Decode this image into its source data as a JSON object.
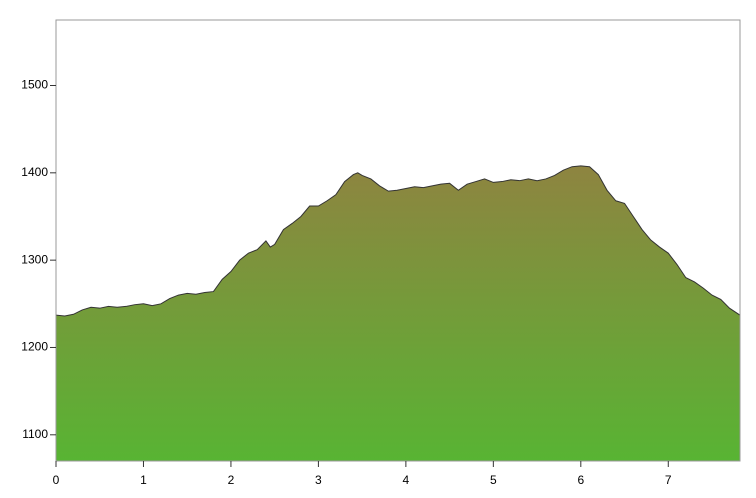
{
  "chart_data": {
    "type": "area",
    "x": [
      0,
      0.1,
      0.2,
      0.3,
      0.4,
      0.5,
      0.6,
      0.7,
      0.8,
      0.9,
      1.0,
      1.1,
      1.2,
      1.3,
      1.4,
      1.5,
      1.6,
      1.7,
      1.8,
      1.9,
      2.0,
      2.1,
      2.2,
      2.3,
      2.4,
      2.45,
      2.5,
      2.6,
      2.7,
      2.8,
      2.9,
      3.0,
      3.1,
      3.2,
      3.3,
      3.4,
      3.45,
      3.5,
      3.6,
      3.7,
      3.8,
      3.9,
      4.0,
      4.1,
      4.2,
      4.3,
      4.4,
      4.5,
      4.6,
      4.7,
      4.8,
      4.9,
      5.0,
      5.1,
      5.2,
      5.3,
      5.4,
      5.5,
      5.6,
      5.7,
      5.8,
      5.9,
      6.0,
      6.1,
      6.2,
      6.3,
      6.4,
      6.5,
      6.6,
      6.7,
      6.8,
      6.9,
      7.0,
      7.1,
      7.2,
      7.3,
      7.4,
      7.5,
      7.6,
      7.7,
      7.82
    ],
    "values": [
      1237,
      1236,
      1238,
      1243,
      1246,
      1245,
      1247,
      1246,
      1247,
      1249,
      1250,
      1248,
      1250,
      1256,
      1260,
      1262,
      1261,
      1263,
      1264,
      1278,
      1287,
      1300,
      1308,
      1312,
      1322,
      1315,
      1318,
      1335,
      1342,
      1350,
      1362,
      1362,
      1368,
      1375,
      1390,
      1398,
      1400,
      1397,
      1393,
      1385,
      1379,
      1380,
      1382,
      1384,
      1383,
      1385,
      1387,
      1388,
      1380,
      1387,
      1390,
      1393,
      1389,
      1390,
      1392,
      1391,
      1393,
      1391,
      1393,
      1397,
      1403,
      1407,
      1408,
      1407,
      1398,
      1380,
      1368,
      1365,
      1350,
      1335,
      1323,
      1315,
      1308,
      1295,
      1280,
      1275,
      1268,
      1260,
      1255,
      1245,
      1237
    ],
    "colors": [
      "#8e8440",
      "#58b433"
    ],
    "xlim": [
      0,
      7.82
    ],
    "xticks": [
      0,
      1,
      2,
      3,
      4,
      5,
      6,
      7
    ],
    "ylim": [
      1070,
      1575
    ],
    "yticks": [
      1100,
      1200,
      1300,
      1400,
      1500
    ]
  }
}
